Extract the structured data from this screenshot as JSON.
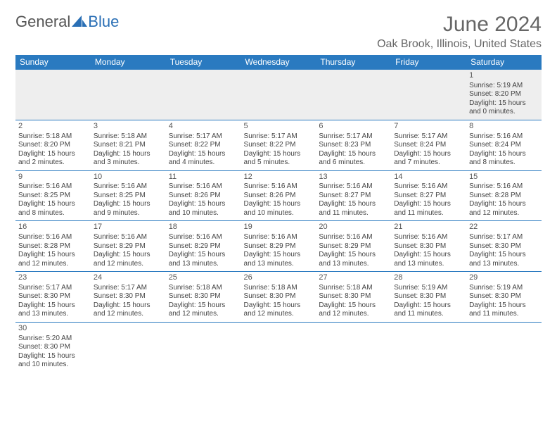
{
  "brand": {
    "part1": "General",
    "part2": "Blue"
  },
  "title": "June 2024",
  "location": "Oak Brook, Illinois, United States",
  "colors": {
    "header_bg": "#2a7ac0",
    "header_text": "#ffffff",
    "cell_border": "#2a7ac0",
    "first_row_bg": "#eeeeee",
    "text": "#444444",
    "title_text": "#666666",
    "brand_blue": "#2a6fb5"
  },
  "dayHeaders": [
    "Sunday",
    "Monday",
    "Tuesday",
    "Wednesday",
    "Thursday",
    "Friday",
    "Saturday"
  ],
  "weeks": [
    [
      null,
      null,
      null,
      null,
      null,
      null,
      {
        "n": "1",
        "sunrise": "Sunrise: 5:19 AM",
        "sunset": "Sunset: 8:20 PM",
        "dl1": "Daylight: 15 hours",
        "dl2": "and 0 minutes."
      }
    ],
    [
      {
        "n": "2",
        "sunrise": "Sunrise: 5:18 AM",
        "sunset": "Sunset: 8:20 PM",
        "dl1": "Daylight: 15 hours",
        "dl2": "and 2 minutes."
      },
      {
        "n": "3",
        "sunrise": "Sunrise: 5:18 AM",
        "sunset": "Sunset: 8:21 PM",
        "dl1": "Daylight: 15 hours",
        "dl2": "and 3 minutes."
      },
      {
        "n": "4",
        "sunrise": "Sunrise: 5:17 AM",
        "sunset": "Sunset: 8:22 PM",
        "dl1": "Daylight: 15 hours",
        "dl2": "and 4 minutes."
      },
      {
        "n": "5",
        "sunrise": "Sunrise: 5:17 AM",
        "sunset": "Sunset: 8:22 PM",
        "dl1": "Daylight: 15 hours",
        "dl2": "and 5 minutes."
      },
      {
        "n": "6",
        "sunrise": "Sunrise: 5:17 AM",
        "sunset": "Sunset: 8:23 PM",
        "dl1": "Daylight: 15 hours",
        "dl2": "and 6 minutes."
      },
      {
        "n": "7",
        "sunrise": "Sunrise: 5:17 AM",
        "sunset": "Sunset: 8:24 PM",
        "dl1": "Daylight: 15 hours",
        "dl2": "and 7 minutes."
      },
      {
        "n": "8",
        "sunrise": "Sunrise: 5:16 AM",
        "sunset": "Sunset: 8:24 PM",
        "dl1": "Daylight: 15 hours",
        "dl2": "and 8 minutes."
      }
    ],
    [
      {
        "n": "9",
        "sunrise": "Sunrise: 5:16 AM",
        "sunset": "Sunset: 8:25 PM",
        "dl1": "Daylight: 15 hours",
        "dl2": "and 8 minutes."
      },
      {
        "n": "10",
        "sunrise": "Sunrise: 5:16 AM",
        "sunset": "Sunset: 8:25 PM",
        "dl1": "Daylight: 15 hours",
        "dl2": "and 9 minutes."
      },
      {
        "n": "11",
        "sunrise": "Sunrise: 5:16 AM",
        "sunset": "Sunset: 8:26 PM",
        "dl1": "Daylight: 15 hours",
        "dl2": "and 10 minutes."
      },
      {
        "n": "12",
        "sunrise": "Sunrise: 5:16 AM",
        "sunset": "Sunset: 8:26 PM",
        "dl1": "Daylight: 15 hours",
        "dl2": "and 10 minutes."
      },
      {
        "n": "13",
        "sunrise": "Sunrise: 5:16 AM",
        "sunset": "Sunset: 8:27 PM",
        "dl1": "Daylight: 15 hours",
        "dl2": "and 11 minutes."
      },
      {
        "n": "14",
        "sunrise": "Sunrise: 5:16 AM",
        "sunset": "Sunset: 8:27 PM",
        "dl1": "Daylight: 15 hours",
        "dl2": "and 11 minutes."
      },
      {
        "n": "15",
        "sunrise": "Sunrise: 5:16 AM",
        "sunset": "Sunset: 8:28 PM",
        "dl1": "Daylight: 15 hours",
        "dl2": "and 12 minutes."
      }
    ],
    [
      {
        "n": "16",
        "sunrise": "Sunrise: 5:16 AM",
        "sunset": "Sunset: 8:28 PM",
        "dl1": "Daylight: 15 hours",
        "dl2": "and 12 minutes."
      },
      {
        "n": "17",
        "sunrise": "Sunrise: 5:16 AM",
        "sunset": "Sunset: 8:29 PM",
        "dl1": "Daylight: 15 hours",
        "dl2": "and 12 minutes."
      },
      {
        "n": "18",
        "sunrise": "Sunrise: 5:16 AM",
        "sunset": "Sunset: 8:29 PM",
        "dl1": "Daylight: 15 hours",
        "dl2": "and 13 minutes."
      },
      {
        "n": "19",
        "sunrise": "Sunrise: 5:16 AM",
        "sunset": "Sunset: 8:29 PM",
        "dl1": "Daylight: 15 hours",
        "dl2": "and 13 minutes."
      },
      {
        "n": "20",
        "sunrise": "Sunrise: 5:16 AM",
        "sunset": "Sunset: 8:29 PM",
        "dl1": "Daylight: 15 hours",
        "dl2": "and 13 minutes."
      },
      {
        "n": "21",
        "sunrise": "Sunrise: 5:16 AM",
        "sunset": "Sunset: 8:30 PM",
        "dl1": "Daylight: 15 hours",
        "dl2": "and 13 minutes."
      },
      {
        "n": "22",
        "sunrise": "Sunrise: 5:17 AM",
        "sunset": "Sunset: 8:30 PM",
        "dl1": "Daylight: 15 hours",
        "dl2": "and 13 minutes."
      }
    ],
    [
      {
        "n": "23",
        "sunrise": "Sunrise: 5:17 AM",
        "sunset": "Sunset: 8:30 PM",
        "dl1": "Daylight: 15 hours",
        "dl2": "and 13 minutes."
      },
      {
        "n": "24",
        "sunrise": "Sunrise: 5:17 AM",
        "sunset": "Sunset: 8:30 PM",
        "dl1": "Daylight: 15 hours",
        "dl2": "and 12 minutes."
      },
      {
        "n": "25",
        "sunrise": "Sunrise: 5:18 AM",
        "sunset": "Sunset: 8:30 PM",
        "dl1": "Daylight: 15 hours",
        "dl2": "and 12 minutes."
      },
      {
        "n": "26",
        "sunrise": "Sunrise: 5:18 AM",
        "sunset": "Sunset: 8:30 PM",
        "dl1": "Daylight: 15 hours",
        "dl2": "and 12 minutes."
      },
      {
        "n": "27",
        "sunrise": "Sunrise: 5:18 AM",
        "sunset": "Sunset: 8:30 PM",
        "dl1": "Daylight: 15 hours",
        "dl2": "and 12 minutes."
      },
      {
        "n": "28",
        "sunrise": "Sunrise: 5:19 AM",
        "sunset": "Sunset: 8:30 PM",
        "dl1": "Daylight: 15 hours",
        "dl2": "and 11 minutes."
      },
      {
        "n": "29",
        "sunrise": "Sunrise: 5:19 AM",
        "sunset": "Sunset: 8:30 PM",
        "dl1": "Daylight: 15 hours",
        "dl2": "and 11 minutes."
      }
    ],
    [
      {
        "n": "30",
        "sunrise": "Sunrise: 5:20 AM",
        "sunset": "Sunset: 8:30 PM",
        "dl1": "Daylight: 15 hours",
        "dl2": "and 10 minutes."
      },
      null,
      null,
      null,
      null,
      null,
      null
    ]
  ]
}
